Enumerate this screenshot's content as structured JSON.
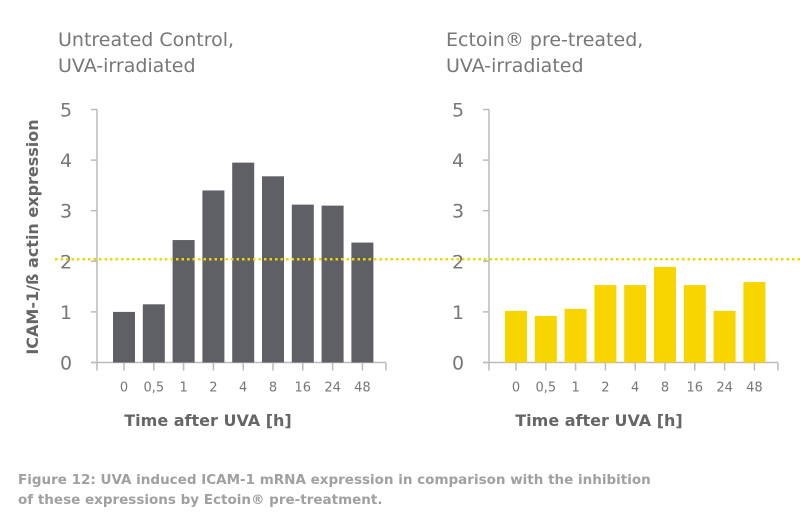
{
  "chart_data": [
    {
      "type": "bar",
      "title_lines": [
        "Untreated Control,",
        "UVA-irradiated"
      ],
      "xlabel": "Time after UVA [h]",
      "ylabel": "ICAM-1/ß actin expression",
      "categories": [
        "0",
        "0,5",
        "1",
        "2",
        "4",
        "8",
        "16",
        "24",
        "48"
      ],
      "values": [
        1.0,
        1.15,
        2.42,
        3.4,
        3.95,
        3.68,
        3.12,
        3.1,
        2.37
      ],
      "ylim": [
        0,
        5
      ],
      "yticks": [
        "0",
        "1",
        "2",
        "3",
        "4",
        "5"
      ],
      "bar_color": "#5f5f66",
      "reference_line": {
        "value": 2.04,
        "color": "#f2d600",
        "style": "dotted"
      },
      "grid": false
    },
    {
      "type": "bar",
      "title_lines": [
        "Ectoin® pre-treated,",
        "UVA-irradiated"
      ],
      "xlabel": "Time after UVA [h]",
      "categories": [
        "0",
        "0,5",
        "1",
        "2",
        "4",
        "8",
        "16",
        "24",
        "48"
      ],
      "values": [
        1.02,
        0.92,
        1.06,
        1.53,
        1.53,
        1.89,
        1.53,
        1.02,
        1.59
      ],
      "ylim": [
        0,
        5
      ],
      "yticks": [
        "0",
        "1",
        "2",
        "3",
        "4",
        "5"
      ],
      "bar_color": "#f9d500",
      "reference_line": {
        "value": 2.04,
        "color": "#f2d600",
        "style": "dotted"
      },
      "grid": false
    }
  ],
  "caption_lines": [
    "Figure 12: UVA induced ICAM-1 mRNA expression in comparison with the inhibition",
    "of these expressions by Ectoin® pre-treatment."
  ]
}
